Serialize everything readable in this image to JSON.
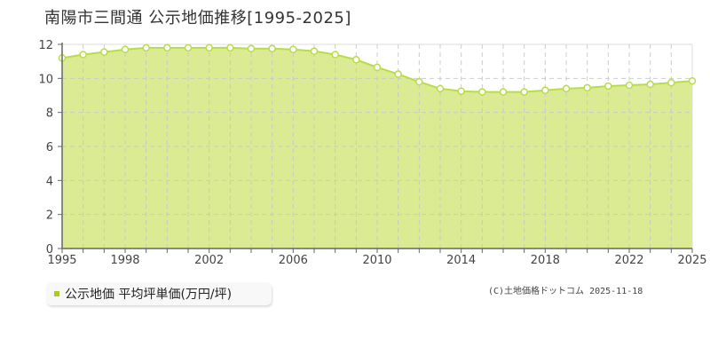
{
  "title": "南陽市三間通 公示地価推移[1995-2025]",
  "legend": {
    "label": "公示地価 平均坪単価(万円/坪)",
    "color": "#aacc22"
  },
  "copyright": "(C)土地価格ドットコム 2025-11-18",
  "colors": {
    "area_fill": "#dbeb94",
    "line": "#b8dc4a",
    "marker_stroke": "#b8dc4a",
    "marker_fill": "#ffffff",
    "grid": "#c8c8c8",
    "axis": "#666666"
  },
  "chart_data": {
    "type": "area",
    "title": "南陽市三間通 公示地価推移[1995-2025]",
    "xlabel": "",
    "ylabel": "",
    "ylim": [
      0,
      12
    ],
    "yticks": [
      0,
      2,
      4,
      6,
      8,
      10,
      12
    ],
    "xticks": [
      1995,
      1998,
      2002,
      2006,
      2010,
      2014,
      2018,
      2022,
      2025
    ],
    "grid": true,
    "legend_position": "bottom-left",
    "series": [
      {
        "name": "公示地価 平均坪単価(万円/坪)",
        "x": [
          1995,
          1996,
          1997,
          1998,
          1999,
          2000,
          2001,
          2002,
          2003,
          2004,
          2005,
          2006,
          2007,
          2008,
          2009,
          2010,
          2011,
          2012,
          2013,
          2014,
          2015,
          2016,
          2017,
          2018,
          2019,
          2020,
          2021,
          2022,
          2023,
          2024,
          2025
        ],
        "values": [
          11.2,
          11.4,
          11.55,
          11.7,
          11.8,
          11.8,
          11.8,
          11.8,
          11.8,
          11.75,
          11.75,
          11.7,
          11.6,
          11.4,
          11.1,
          10.65,
          10.25,
          9.8,
          9.4,
          9.25,
          9.2,
          9.2,
          9.2,
          9.3,
          9.4,
          9.45,
          9.55,
          9.6,
          9.65,
          9.75,
          9.85
        ]
      }
    ]
  }
}
